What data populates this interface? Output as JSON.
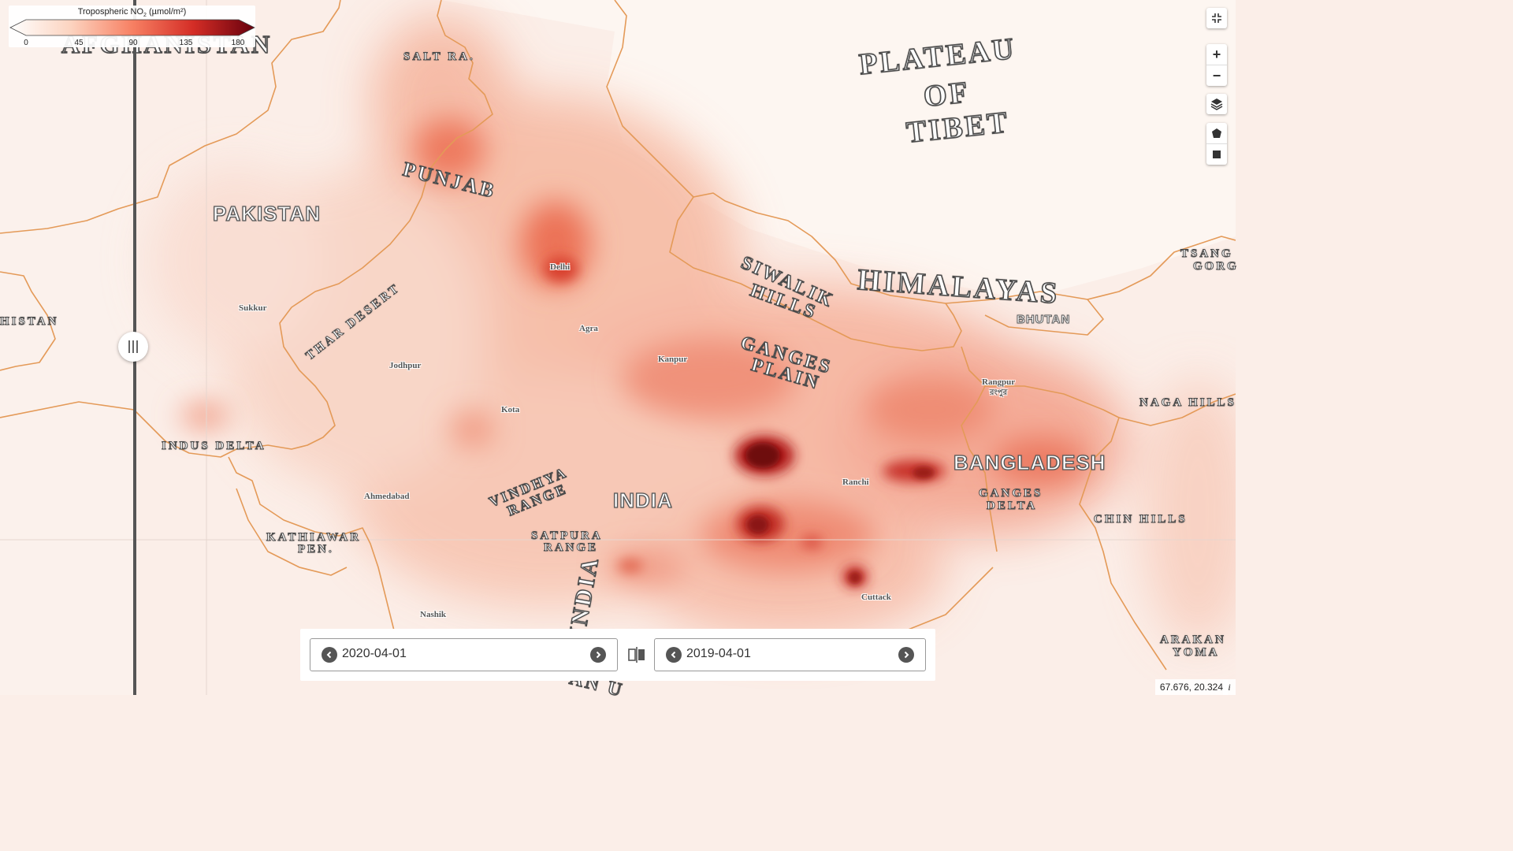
{
  "legend": {
    "title": "Tropospheric NO",
    "title_sub": "2",
    "title_unit": " (µmol/m²)",
    "ticks": [
      "0",
      "45",
      "90",
      "135",
      "180"
    ],
    "colors": [
      "#ffffff",
      "#fcd7c4",
      "#f7876a",
      "#d8312a",
      "#67000d"
    ]
  },
  "labels": {
    "afghanistan": "AFGHANISTAN",
    "afghanistan_edge": "HISTAN",
    "salt_range": "SALT RA.",
    "plateau_line1": "PLATEAU",
    "plateau_line2": "OF",
    "plateau_line3": "TIBET",
    "punjab": "PUNJAB",
    "pakistan": "PAKISTAN",
    "thar_desert": "THAR DESERT",
    "siwalik_line1": "SIWALIK",
    "siwalik_line2": "HILLS",
    "himalayas": "HIMALAYAS",
    "tsangpo_line1": "TSANG",
    "tsangpo_line2": "GORG",
    "bhutan": "BHUTAN",
    "ganges_plain_line1": "GANGES",
    "ganges_plain_line2": "PLAIN",
    "naga_hills": "NAGA HILLS",
    "indus_delta": "INDUS DELTA",
    "bangladesh": "BANGLADESH",
    "ganges_delta_line1": "GANGES",
    "ganges_delta_line2": "DELTA",
    "vindhya_line1": "VINDHYA",
    "vindhya_line2": "RANGE",
    "india": "INDIA",
    "india_vertical": "INDIA",
    "india_bottom": "AN U",
    "chin_hills": "CHIN HILLS",
    "kathiawar_line1": "KATHIAWAR",
    "kathiawar_line2": "PEN.",
    "satpura_line1": "SATPURA",
    "satpura_line2": "RANGE",
    "arakan_line1": "ARAKAN",
    "arakan_line2": "YOMA"
  },
  "cities": {
    "delhi": "Delhi",
    "sukkur": "Sukkur",
    "agra": "Agra",
    "kanpur": "Kanpur",
    "jodhpur": "Jodhpur",
    "kota": "Kota",
    "rangpur": "Rangpur",
    "rangpur_local": "রংপুর",
    "ranchi": "Ranchi",
    "ahmedabad": "Ahmedabad",
    "cuttack": "Cuttack",
    "nashik": "Nashik"
  },
  "controls": {
    "fullscreen_icon": "fullscreen-exit-icon",
    "zoom_in": "+",
    "zoom_out": "−",
    "layers_icon": "layers-icon",
    "polygon_icon": "polygon-draw-icon",
    "rectangle_icon": "rectangle-draw-icon"
  },
  "dates": {
    "left": "2020-04-01",
    "right": "2019-04-01"
  },
  "coordinates": "67.676, 20.324",
  "info": "i"
}
